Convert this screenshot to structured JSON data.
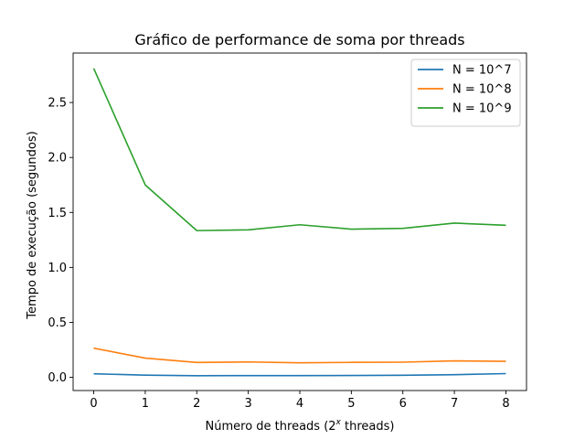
{
  "chart_data": {
    "type": "line",
    "title": "Gráfico de performance de soma por threads",
    "xlabel_prefix": "Número de threads (2",
    "xlabel_sup": "x",
    "xlabel_suffix": " threads)",
    "ylabel": "Tempo de execução (segundos)",
    "x": [
      0,
      1,
      2,
      3,
      4,
      5,
      6,
      7,
      8
    ],
    "xlim": [
      -0.4,
      8.4
    ],
    "ylim": [
      -0.12,
      2.95
    ],
    "xticks": [
      0,
      1,
      2,
      3,
      4,
      5,
      6,
      7,
      8
    ],
    "yticks": [
      0.0,
      0.5,
      1.0,
      1.5,
      2.0,
      2.5
    ],
    "ytick_labels": [
      "0.0",
      "0.5",
      "1.0",
      "1.5",
      "2.0",
      "2.5"
    ],
    "grid": false,
    "legend_position": "top-right",
    "series": [
      {
        "name": "N = 10^7",
        "color": "#1f77b4",
        "values": [
          0.032,
          0.02,
          0.015,
          0.016,
          0.016,
          0.017,
          0.019,
          0.024,
          0.034
        ]
      },
      {
        "name": "N = 10^8",
        "color": "#ff7f0e",
        "values": [
          0.265,
          0.175,
          0.135,
          0.14,
          0.132,
          0.136,
          0.138,
          0.15,
          0.146
        ]
      },
      {
        "name": "N = 10^9",
        "color": "#2ca02c",
        "values": [
          2.81,
          1.75,
          1.335,
          1.342,
          1.388,
          1.348,
          1.355,
          1.403,
          1.383
        ]
      }
    ]
  }
}
